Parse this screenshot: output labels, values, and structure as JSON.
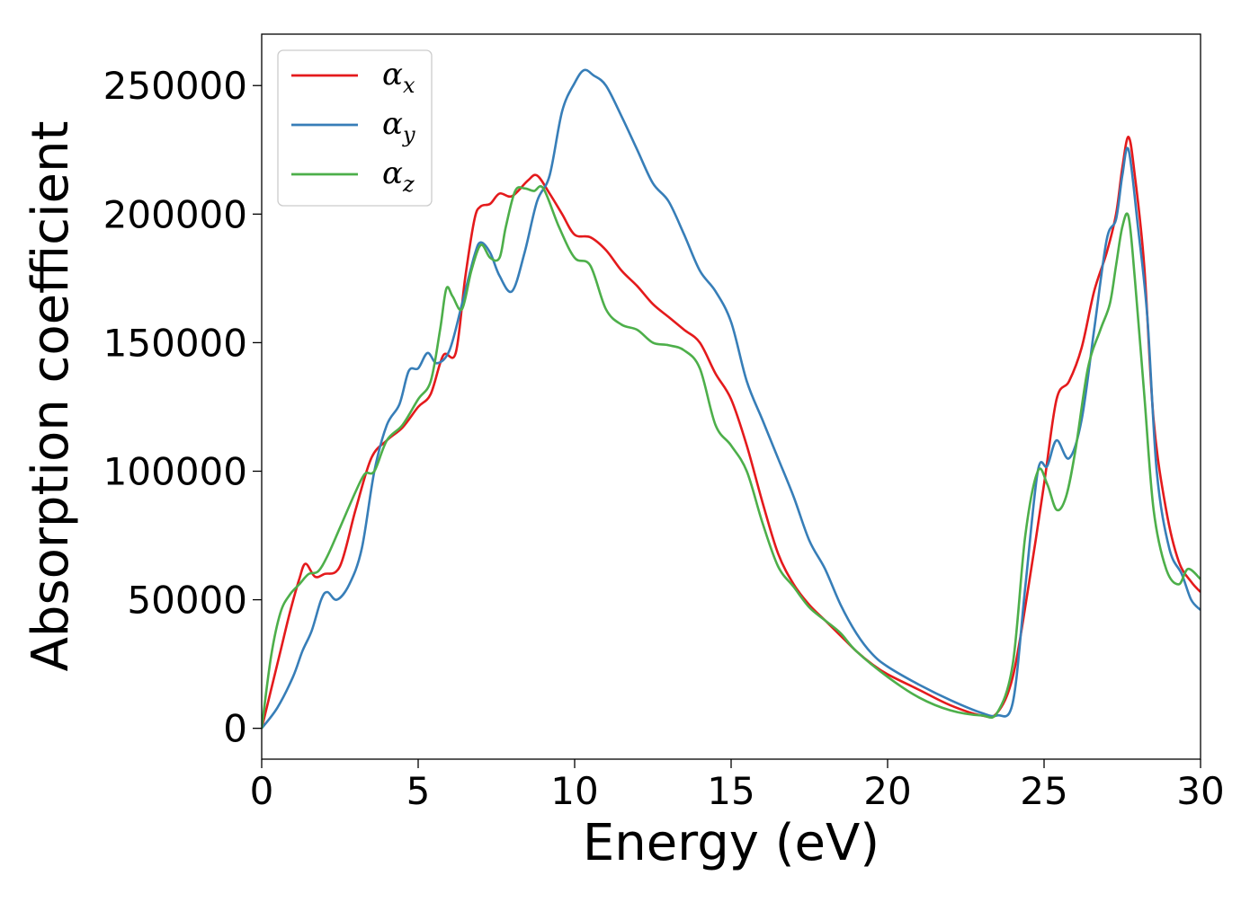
{
  "chart_data": {
    "type": "line",
    "xlabel": "Energy (eV)",
    "ylabel": "Absorption coefficient",
    "xlim": [
      0,
      30
    ],
    "ylim": [
      -12000,
      270000
    ],
    "xticks": [
      0,
      5,
      10,
      15,
      20,
      25,
      30
    ],
    "xtick_labels": [
      "0",
      "5",
      "10",
      "15",
      "20",
      "25",
      "30"
    ],
    "yticks": [
      0,
      50000,
      100000,
      150000,
      200000,
      250000
    ],
    "ytick_labels": [
      "0",
      "50000",
      "100000",
      "150000",
      "200000",
      "250000"
    ],
    "grid": false,
    "legend_position": "top-left",
    "series": [
      {
        "name": "αx",
        "symbol": "α",
        "subscript": "x",
        "color": "#e41a1c",
        "x": [
          0,
          0.3,
          0.6,
          0.9,
          1.2,
          1.4,
          1.7,
          2.0,
          2.5,
          3.0,
          3.5,
          4.0,
          4.5,
          5.0,
          5.4,
          5.8,
          6.2,
          6.5,
          6.8,
          7.0,
          7.3,
          7.6,
          8.0,
          8.5,
          8.8,
          9.2,
          9.6,
          10.0,
          10.5,
          11.0,
          11.5,
          12.0,
          12.5,
          13.0,
          13.5,
          14.0,
          14.5,
          15.0,
          15.5,
          16.0,
          16.5,
          17.0,
          17.5,
          18.0,
          18.5,
          19.0,
          19.5,
          20.0,
          21.0,
          22.0,
          23.0,
          23.5,
          24.0,
          24.5,
          25.0,
          25.4,
          25.8,
          26.2,
          26.6,
          27.0,
          27.3,
          27.5,
          27.7,
          27.9,
          28.2,
          28.5,
          28.9,
          29.3,
          29.7,
          30.0
        ],
        "y": [
          0,
          15000,
          30000,
          45000,
          58000,
          64000,
          59000,
          60000,
          63000,
          85000,
          105000,
          112000,
          117000,
          125000,
          130000,
          145000,
          146000,
          175000,
          198000,
          203000,
          204000,
          208000,
          207000,
          213000,
          215000,
          208000,
          200000,
          192000,
          191000,
          186000,
          178000,
          172000,
          165000,
          160000,
          155000,
          150000,
          138000,
          128000,
          110000,
          88000,
          68000,
          56000,
          48000,
          42000,
          36000,
          30000,
          25000,
          21000,
          15000,
          9000,
          5000,
          6000,
          20000,
          55000,
          95000,
          128000,
          135000,
          148000,
          170000,
          185000,
          200000,
          218000,
          230000,
          215000,
          180000,
          120000,
          85000,
          65000,
          57000,
          53000
        ]
      },
      {
        "name": "αy",
        "symbol": "α",
        "subscript": "y",
        "color": "#377eb8",
        "x": [
          0,
          0.5,
          1.0,
          1.3,
          1.6,
          1.9,
          2.1,
          2.4,
          2.8,
          3.2,
          3.6,
          4.0,
          4.4,
          4.7,
          5.0,
          5.3,
          5.6,
          6.0,
          6.4,
          6.8,
          7.0,
          7.3,
          7.6,
          8.0,
          8.4,
          8.8,
          9.2,
          9.6,
          10.0,
          10.3,
          10.6,
          11.0,
          11.5,
          12.0,
          12.5,
          13.0,
          13.5,
          14.0,
          14.5,
          15.0,
          15.5,
          16.0,
          16.5,
          17.0,
          17.5,
          18.0,
          18.5,
          19.0,
          19.5,
          20.0,
          21.0,
          22.0,
          23.0,
          23.5,
          24.0,
          24.4,
          24.8,
          25.1,
          25.4,
          25.8,
          26.2,
          26.6,
          27.0,
          27.3,
          27.5,
          27.7,
          28.0,
          28.3,
          28.6,
          29.0,
          29.4,
          29.7,
          30.0
        ],
        "y": [
          0,
          8000,
          20000,
          30000,
          38000,
          50000,
          53000,
          50000,
          56000,
          70000,
          100000,
          118000,
          126000,
          139000,
          140000,
          146000,
          142000,
          147000,
          165000,
          184000,
          189000,
          185000,
          176000,
          170000,
          185000,
          205000,
          215000,
          240000,
          251000,
          256000,
          254000,
          250000,
          238000,
          225000,
          212000,
          205000,
          192000,
          178000,
          170000,
          158000,
          135000,
          120000,
          105000,
          90000,
          73000,
          62000,
          48000,
          37000,
          29000,
          24000,
          17000,
          11000,
          6000,
          5000,
          10000,
          55000,
          100000,
          102000,
          112000,
          105000,
          120000,
          155000,
          190000,
          198000,
          215000,
          225000,
          195000,
          160000,
          100000,
          70000,
          60000,
          50000,
          46000
        ]
      },
      {
        "name": "αz",
        "symbol": "α",
        "subscript": "z",
        "color": "#4daf4a",
        "x": [
          0,
          0.3,
          0.6,
          0.9,
          1.2,
          1.5,
          1.8,
          2.1,
          2.5,
          3.0,
          3.3,
          3.6,
          4.0,
          4.5,
          5.0,
          5.4,
          5.7,
          5.9,
          6.1,
          6.4,
          6.7,
          7.0,
          7.3,
          7.6,
          7.8,
          8.1,
          8.4,
          8.7,
          9.0,
          9.5,
          10.0,
          10.5,
          11.0,
          11.5,
          12.0,
          12.5,
          13.0,
          13.5,
          14.0,
          14.5,
          15.0,
          15.5,
          16.0,
          16.5,
          17.0,
          17.5,
          18.0,
          18.5,
          19.0,
          20.0,
          21.0,
          22.0,
          23.0,
          23.5,
          24.0,
          24.4,
          24.8,
          25.1,
          25.4,
          25.7,
          26.0,
          26.4,
          26.8,
          27.1,
          27.3,
          27.5,
          27.7,
          27.9,
          28.2,
          28.5,
          28.9,
          29.3,
          29.6,
          30.0
        ],
        "y": [
          0,
          28000,
          45000,
          52000,
          56000,
          60000,
          61000,
          67000,
          78000,
          92000,
          99000,
          100000,
          112000,
          118000,
          128000,
          135000,
          155000,
          171000,
          168000,
          163000,
          178000,
          188000,
          183000,
          183000,
          195000,
          209000,
          210000,
          209000,
          210000,
          195000,
          183000,
          180000,
          163000,
          157000,
          155000,
          150000,
          149000,
          147000,
          140000,
          118000,
          110000,
          100000,
          80000,
          63000,
          55000,
          47000,
          42000,
          37000,
          30000,
          20000,
          12000,
          7000,
          5000,
          6000,
          25000,
          75000,
          100000,
          95000,
          85000,
          90000,
          108000,
          140000,
          155000,
          165000,
          180000,
          195000,
          199000,
          175000,
          130000,
          85000,
          62000,
          56000,
          62000,
          58000
        ]
      }
    ]
  }
}
